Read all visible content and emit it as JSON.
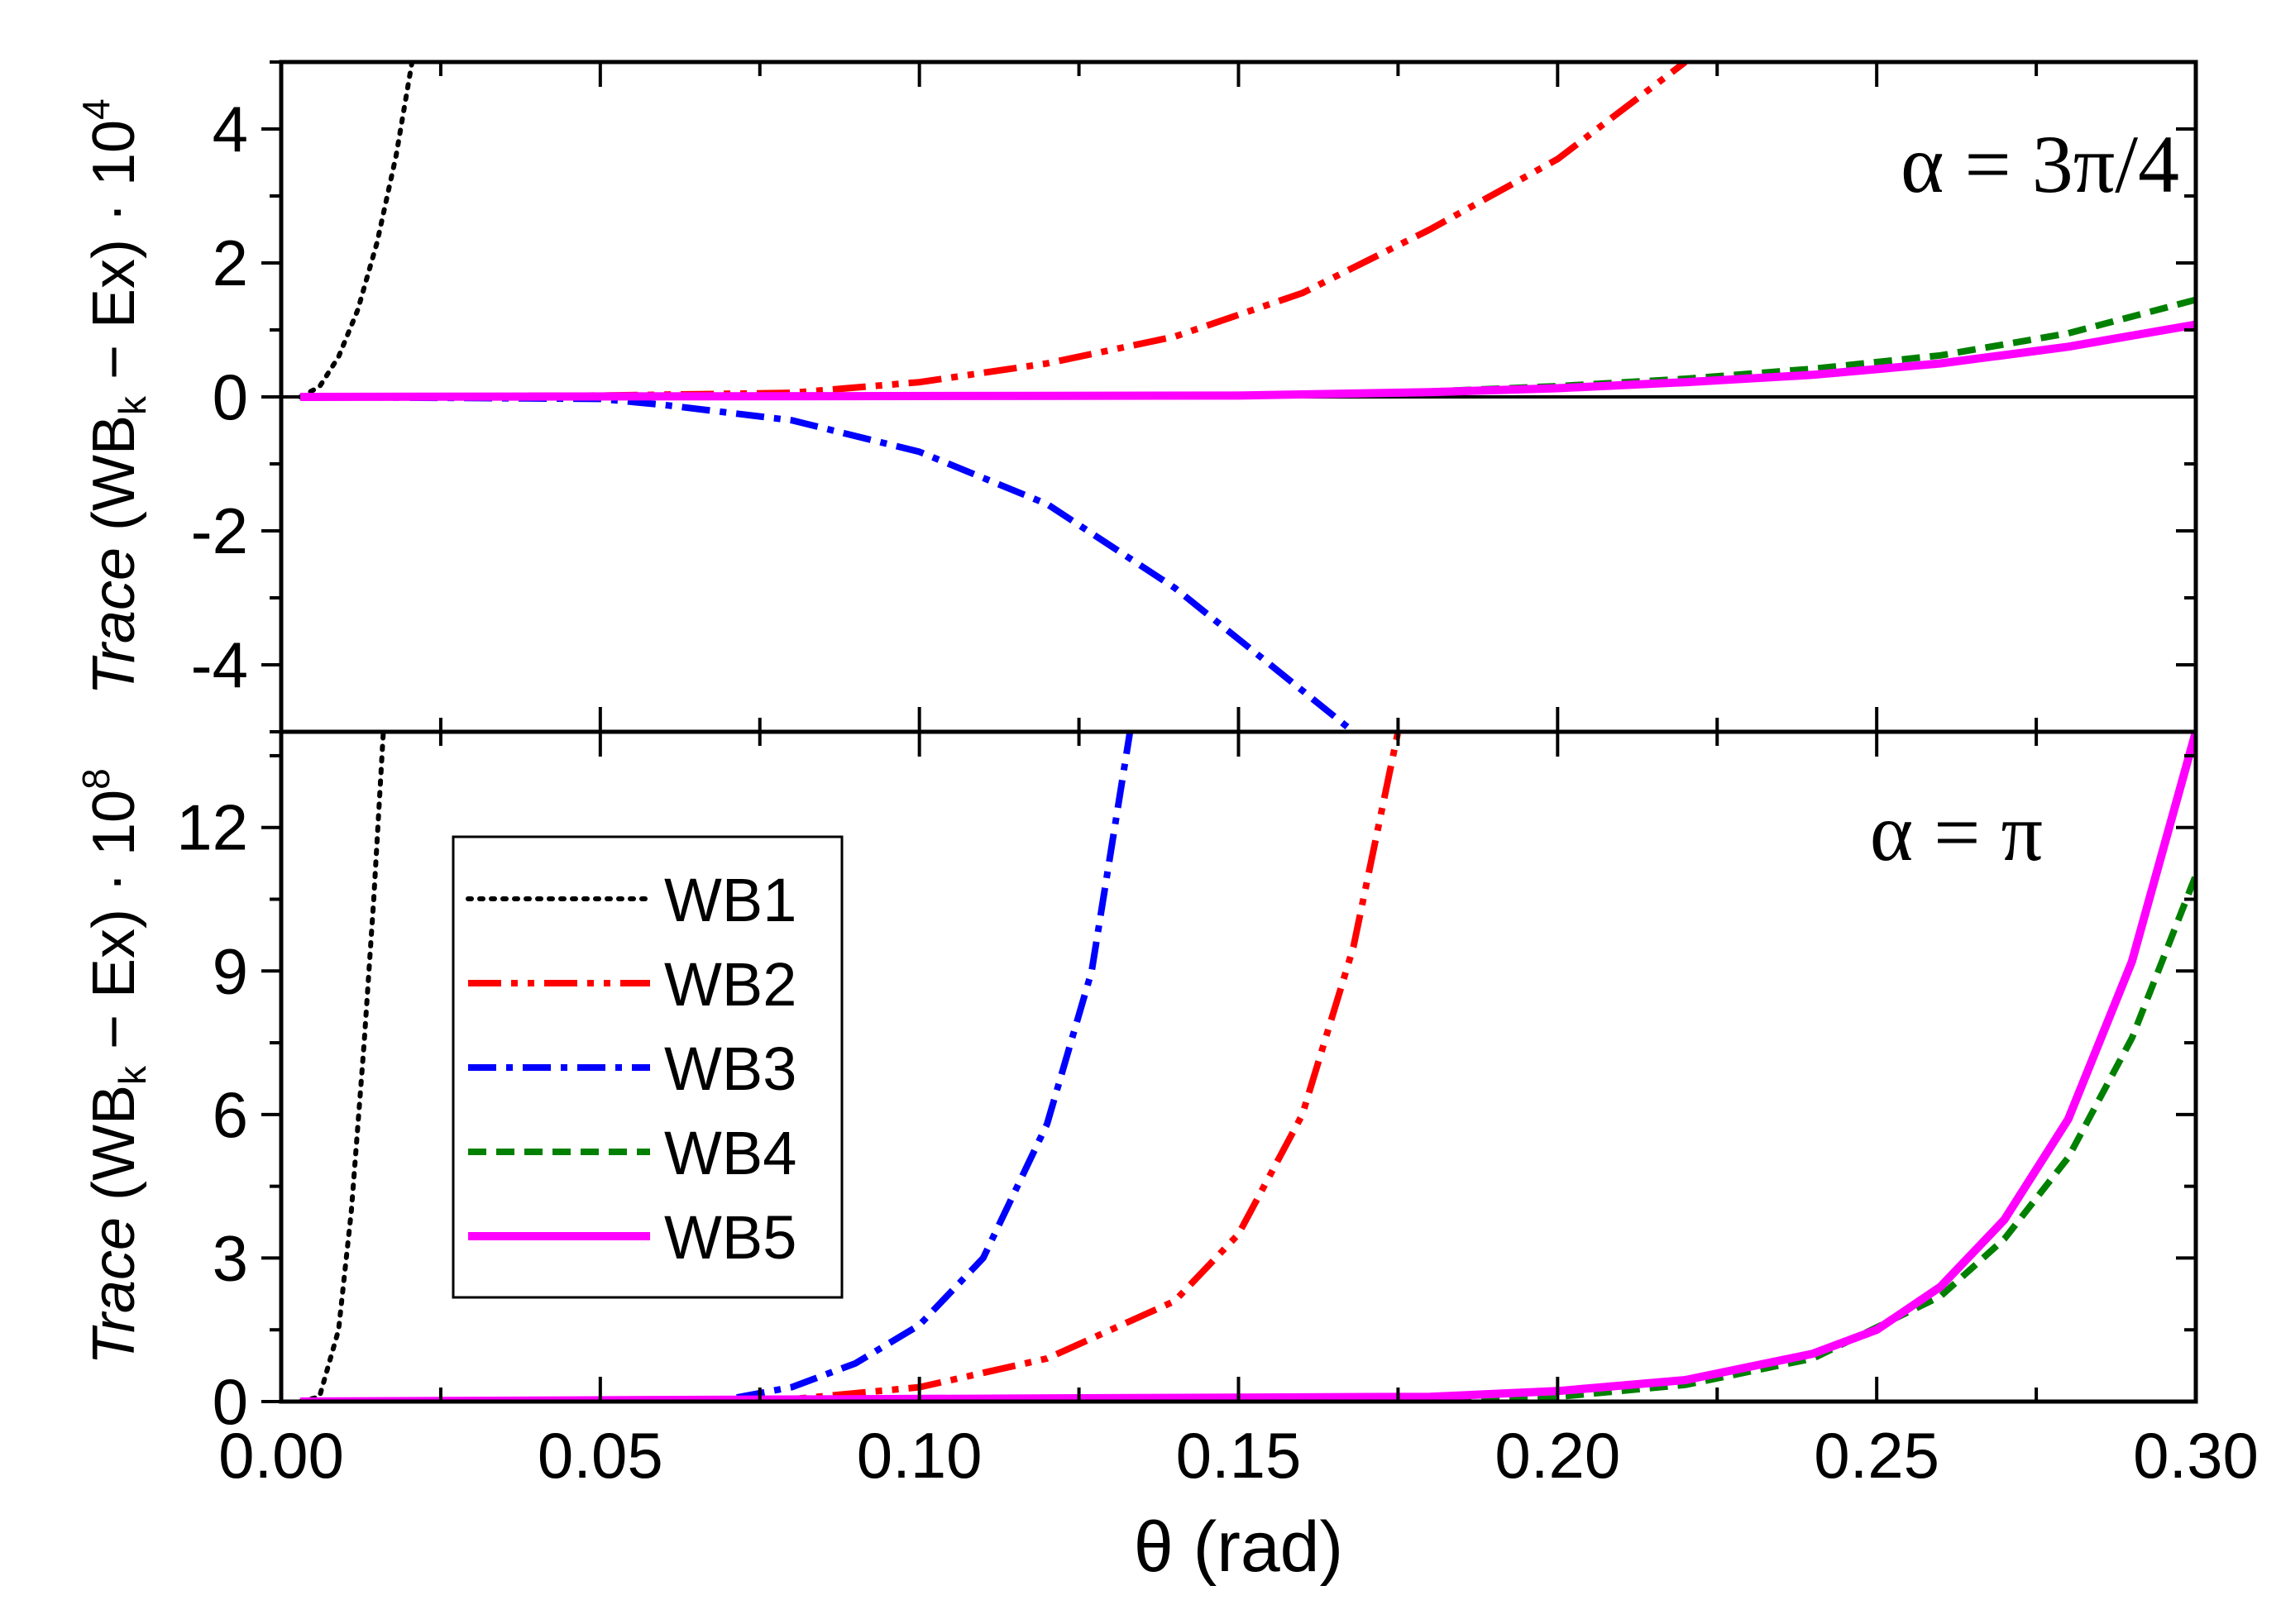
{
  "chart_data": [
    {
      "type": "line",
      "panel": "top",
      "annotation": "α = 3π/4",
      "ylabel": {
        "prefix": "Trace",
        "mid": " (WB",
        "sub": "k",
        "post": " − Ex) · 10",
        "sup": "4"
      },
      "xlim": [
        0,
        0.3
      ],
      "ylim": [
        -5,
        5
      ],
      "yticks": [
        4,
        2,
        0,
        -2,
        -4
      ],
      "ytick_labels": [
        "4",
        "2",
        "0",
        "-2",
        "-4"
      ],
      "zero_line": true,
      "series": [
        {
          "name": "WB1",
          "color": "#000000",
          "dash": "dotted",
          "x": [
            0.003,
            0.006,
            0.009,
            0.012,
            0.015,
            0.018,
            0.0205
          ],
          "y": [
            0,
            0.15,
            0.6,
            1.3,
            2.3,
            3.6,
            5.0
          ]
        },
        {
          "name": "WB2",
          "color": "#ff0000",
          "dash": "dashdotdot",
          "x": [
            0.003,
            0.05,
            0.08,
            0.1,
            0.12,
            0.14,
            0.16,
            0.18,
            0.2,
            0.22
          ],
          "y": [
            0,
            0.02,
            0.06,
            0.22,
            0.5,
            0.9,
            1.55,
            2.5,
            3.55,
            5.0
          ]
        },
        {
          "name": "WB3",
          "color": "#0000ff",
          "dash": "dashdot",
          "x": [
            0.003,
            0.05,
            0.06,
            0.08,
            0.1,
            0.12,
            0.14,
            0.155,
            0.168
          ],
          "y": [
            0,
            -0.03,
            -0.12,
            -0.35,
            -0.82,
            -1.6,
            -2.85,
            -4.0,
            -5.0
          ]
        },
        {
          "name": "WB4",
          "color": "#008000",
          "dash": "dashed",
          "x": [
            0.003,
            0.15,
            0.18,
            0.2,
            0.22,
            0.24,
            0.26,
            0.28,
            0.3
          ],
          "y": [
            0,
            0.02,
            0.08,
            0.16,
            0.27,
            0.42,
            0.62,
            0.95,
            1.45
          ]
        },
        {
          "name": "WB5",
          "color": "#ff00ff",
          "dash": "solid",
          "x": [
            0.003,
            0.15,
            0.18,
            0.2,
            0.22,
            0.24,
            0.26,
            0.28,
            0.3
          ],
          "y": [
            0,
            0.02,
            0.07,
            0.13,
            0.22,
            0.33,
            0.5,
            0.75,
            1.08
          ]
        }
      ]
    },
    {
      "type": "line",
      "panel": "bottom",
      "annotation": "α = π",
      "ylabel": {
        "prefix": "Trace",
        "mid": " (WB",
        "sub": "k",
        "post": " − Ex) · 10",
        "sup": "8"
      },
      "xlabel": "θ (rad)",
      "xlim": [
        0,
        0.3
      ],
      "ylim": [
        0,
        14
      ],
      "xticks": [
        0,
        0.05,
        0.1,
        0.15,
        0.2,
        0.25,
        0.3
      ],
      "xtick_labels": [
        "0.00",
        "0.05",
        "0.10",
        "0.15",
        "0.20",
        "0.25",
        "0.30"
      ],
      "yticks": [
        0,
        3,
        6,
        9,
        12
      ],
      "ytick_labels": [
        "0",
        "3",
        "6",
        "9",
        "12"
      ],
      "series": [
        {
          "name": "WB1",
          "color": "#000000",
          "dash": "dotted",
          "x": [
            0.003,
            0.006,
            0.009,
            0.011,
            0.013,
            0.0145,
            0.016
          ],
          "y": [
            0,
            0.1,
            1.5,
            4.0,
            7.5,
            10.5,
            14
          ]
        },
        {
          "name": "WB2",
          "color": "#ff0000",
          "dash": "dashdotdot",
          "x": [
            0.003,
            0.08,
            0.1,
            0.12,
            0.14,
            0.15,
            0.16,
            0.168,
            0.175
          ],
          "y": [
            0,
            0.05,
            0.3,
            0.9,
            2.1,
            3.5,
            6.0,
            9.5,
            14
          ]
        },
        {
          "name": "WB3",
          "color": "#0000ff",
          "dash": "dashdot",
          "x": [
            0.003,
            0.07,
            0.08,
            0.09,
            0.1,
            0.11,
            0.12,
            0.127,
            0.133
          ],
          "y": [
            0,
            0.05,
            0.3,
            0.8,
            1.6,
            3.0,
            5.8,
            9.0,
            14
          ]
        },
        {
          "name": "WB4",
          "color": "#008000",
          "dash": "dashed",
          "x": [
            0.003,
            0.2,
            0.22,
            0.24,
            0.26,
            0.27,
            0.28,
            0.29,
            0.3
          ],
          "y": [
            0,
            0.1,
            0.35,
            0.9,
            2.2,
            3.4,
            5.1,
            7.6,
            11.0
          ]
        },
        {
          "name": "WB5",
          "color": "#ff00ff",
          "dash": "solid",
          "x": [
            0.003,
            0.18,
            0.2,
            0.22,
            0.24,
            0.25,
            0.26,
            0.27,
            0.28,
            0.29,
            0.3
          ],
          "y": [
            0,
            0.1,
            0.22,
            0.45,
            1.0,
            1.5,
            2.4,
            3.8,
            5.9,
            9.2,
            14
          ]
        }
      ],
      "legend": {
        "placement": "left",
        "entries": [
          "WB1",
          "WB2",
          "WB3",
          "WB4",
          "WB5"
        ]
      }
    }
  ]
}
